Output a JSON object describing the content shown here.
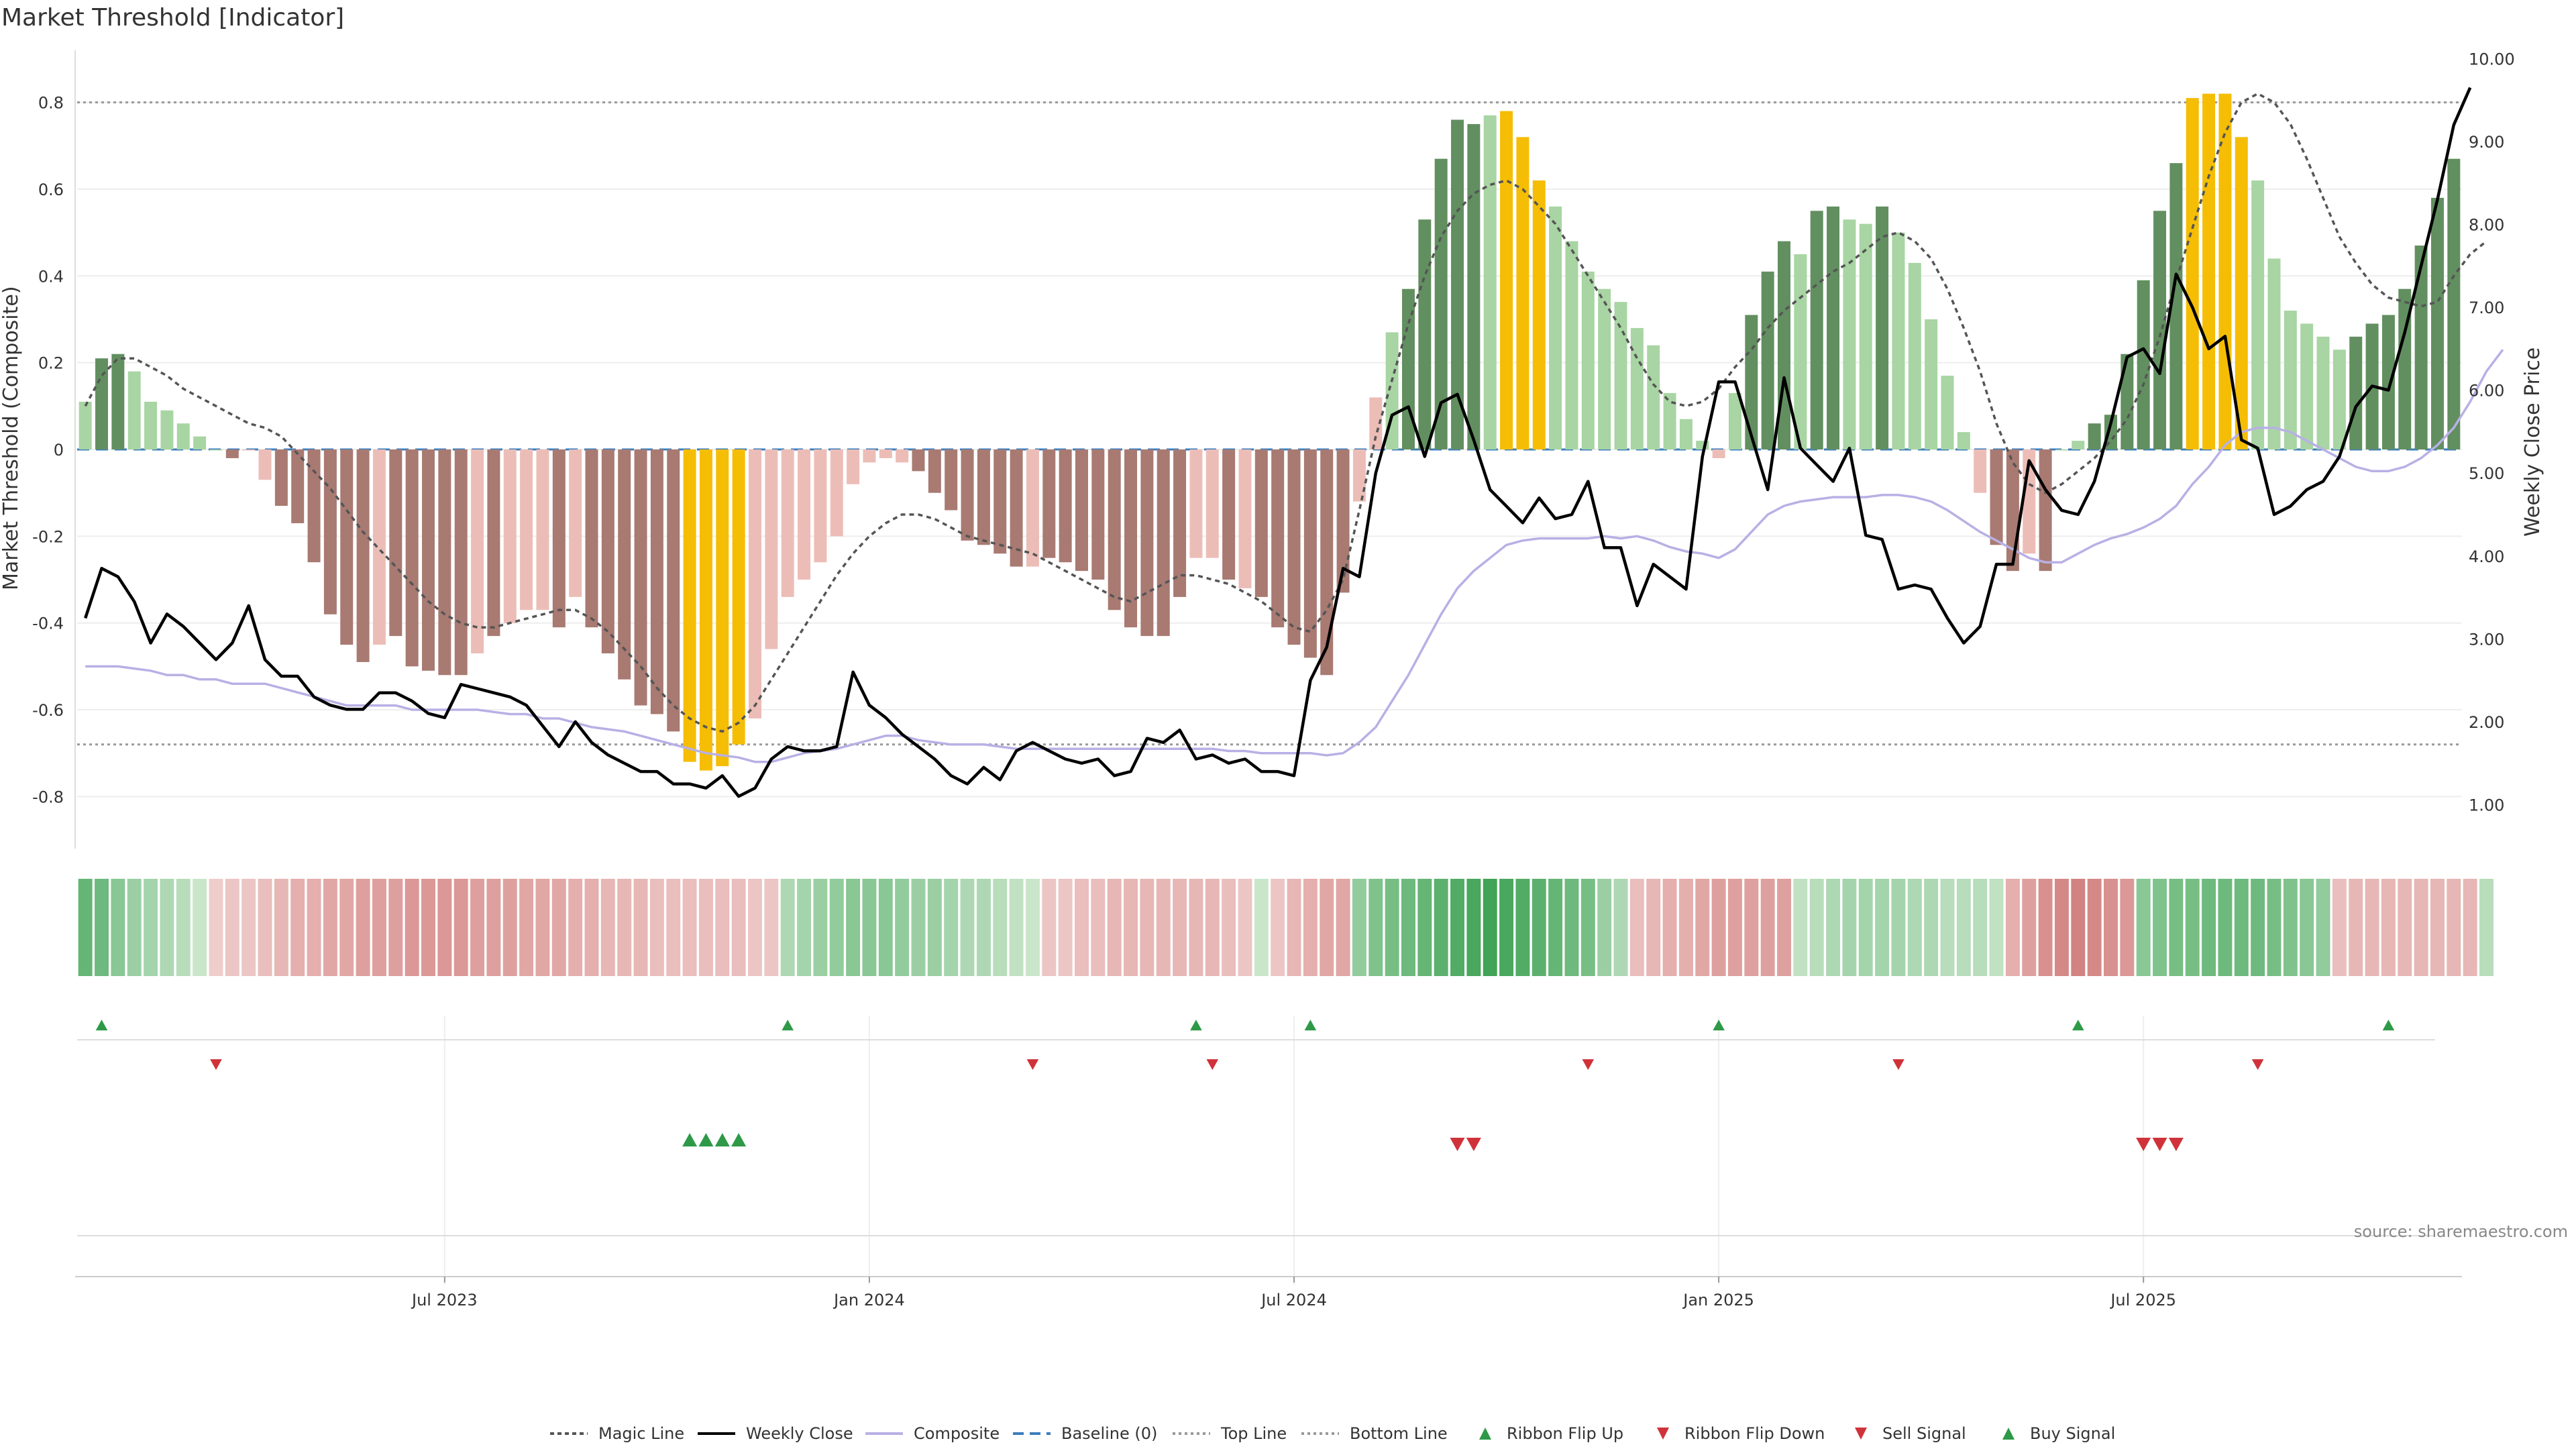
{
  "chart_data": {
    "type": "bar",
    "title": "Market Threshold [Indicator]",
    "ylabel": "Market Threshold (Composite)",
    "y2label": "Weekly Close Price",
    "ylim": [
      -0.92,
      0.92
    ],
    "y2lim": [
      0.47,
      10.1
    ],
    "yticks": [
      "0.8",
      "0.6",
      "0.4",
      "0.2",
      "0",
      "-0.2",
      "-0.4",
      "-0.6",
      "-0.8"
    ],
    "yticks_values": [
      0.8,
      0.6,
      0.4,
      0.2,
      0,
      -0.2,
      -0.4,
      -0.6,
      -0.8
    ],
    "y2ticks": [
      "10.00",
      "9.00",
      "8.00",
      "7.00",
      "6.00",
      "5.00",
      "4.00",
      "3.00",
      "2.00",
      "1.00"
    ],
    "y2ticks_values": [
      10,
      9,
      8,
      7,
      6,
      5,
      4,
      3,
      2,
      1
    ],
    "xticks": [
      "Jul 2023",
      "Jan 2024",
      "Jul 2024",
      "Jan 2025",
      "Jul 2025"
    ],
    "xticks_week_index": [
      22,
      48,
      74,
      100,
      126
    ],
    "top_line": 0.8,
    "bottom_line": -0.68,
    "grid": true,
    "legend_position": "bottom-center",
    "colors": {
      "pos_strong": "#628f60",
      "pos_light": "#a8d5a3",
      "neg_strong": "#a87a72",
      "neg_light": "#ecbdb7",
      "extreme": "#f5bd04",
      "magic": "#555555",
      "close": "#000000",
      "composite": "#b8b0e5",
      "baseline": "#3b7dbd",
      "up_marker": "#2e9a47",
      "down_marker": "#d0323a"
    },
    "composite_bars": [
      0.11,
      0.21,
      0.22,
      0.18,
      0.11,
      0.09,
      0.06,
      0.03,
      0.0,
      -0.02,
      0.0,
      -0.07,
      -0.13,
      -0.17,
      -0.26,
      -0.38,
      -0.45,
      -0.49,
      -0.45,
      -0.43,
      -0.5,
      -0.51,
      -0.52,
      -0.52,
      -0.47,
      -0.43,
      -0.4,
      -0.37,
      -0.37,
      -0.41,
      -0.34,
      -0.41,
      -0.47,
      -0.53,
      -0.59,
      -0.61,
      -0.65,
      -0.72,
      -0.74,
      -0.73,
      -0.68,
      -0.62,
      -0.46,
      -0.34,
      -0.3,
      -0.26,
      -0.2,
      -0.08,
      -0.03,
      -0.02,
      -0.03,
      -0.05,
      -0.1,
      -0.14,
      -0.21,
      -0.22,
      -0.24,
      -0.27,
      -0.27,
      -0.25,
      -0.26,
      -0.28,
      -0.3,
      -0.37,
      -0.41,
      -0.43,
      -0.43,
      -0.34,
      -0.25,
      -0.25,
      -0.3,
      -0.32,
      -0.34,
      -0.41,
      -0.45,
      -0.48,
      -0.52,
      -0.33,
      -0.12,
      0.12,
      0.27,
      0.37,
      0.53,
      0.67,
      0.76,
      0.75,
      0.77,
      0.78,
      0.72,
      0.62,
      0.56,
      0.48,
      0.41,
      0.37,
      0.34,
      0.28,
      0.24,
      0.13,
      0.07,
      0.02,
      -0.02,
      0.13,
      0.31,
      0.41,
      0.48,
      0.45,
      0.55,
      0.56,
      0.53,
      0.52,
      0.56,
      0.5,
      0.43,
      0.3,
      0.17,
      0.04,
      -0.1,
      -0.22,
      -0.28,
      -0.24,
      -0.28,
      0.0,
      0.02,
      0.06,
      0.08,
      0.22,
      0.39,
      0.55,
      0.66,
      0.81,
      0.82,
      0.82,
      0.72,
      0.62,
      0.44,
      0.32,
      0.29,
      0.26,
      0.23,
      0.26,
      0.29,
      0.31,
      0.37,
      0.47,
      0.58,
      0.67
    ],
    "bar_colors": [
      "pl",
      "ps",
      "ps",
      "pl",
      "pl",
      "pl",
      "pl",
      "pl",
      "pl",
      "ns",
      "nl",
      "nl",
      "ns",
      "ns",
      "ns",
      "ns",
      "ns",
      "ns",
      "nl",
      "ns",
      "ns",
      "ns",
      "ns",
      "ns",
      "nl",
      "ns",
      "nl",
      "nl",
      "nl",
      "ns",
      "nl",
      "ns",
      "ns",
      "ns",
      "ns",
      "ns",
      "ns",
      "ex",
      "ex",
      "ex",
      "ex",
      "nl",
      "nl",
      "nl",
      "nl",
      "nl",
      "nl",
      "nl",
      "nl",
      "nl",
      "nl",
      "ns",
      "ns",
      "ns",
      "ns",
      "ns",
      "ns",
      "ns",
      "nl",
      "ns",
      "ns",
      "ns",
      "ns",
      "ns",
      "ns",
      "ns",
      "ns",
      "ns",
      "nl",
      "nl",
      "ns",
      "nl",
      "ns",
      "ns",
      "ns",
      "ns",
      "ns",
      "ns",
      "nl",
      "nl",
      "pl",
      "ps",
      "ps",
      "ps",
      "ps",
      "ps",
      "pl",
      "ex",
      "ex",
      "ex",
      "pl",
      "pl",
      "pl",
      "pl",
      "pl",
      "pl",
      "pl",
      "pl",
      "pl",
      "pl",
      "nl",
      "pl",
      "ps",
      "ps",
      "ps",
      "pl",
      "ps",
      "ps",
      "pl",
      "pl",
      "ps",
      "pl",
      "pl",
      "pl",
      "pl",
      "pl",
      "nl",
      "ns",
      "ns",
      "nl",
      "ns",
      "pl",
      "pl",
      "ps",
      "ps",
      "ps",
      "ps",
      "ps",
      "ps",
      "ex",
      "ex",
      "ex",
      "ex",
      "pl",
      "pl",
      "pl",
      "pl",
      "pl",
      "pl",
      "ps",
      "ps",
      "ps",
      "ps",
      "ps",
      "ps",
      "ps"
    ],
    "magic_line": [
      0.1,
      0.17,
      0.21,
      0.21,
      0.19,
      0.17,
      0.14,
      0.12,
      0.1,
      0.08,
      0.06,
      0.05,
      0.03,
      -0.01,
      -0.05,
      -0.09,
      -0.14,
      -0.19,
      -0.23,
      -0.27,
      -0.31,
      -0.35,
      -0.38,
      -0.4,
      -0.41,
      -0.41,
      -0.4,
      -0.39,
      -0.38,
      -0.37,
      -0.37,
      -0.39,
      -0.42,
      -0.46,
      -0.5,
      -0.55,
      -0.59,
      -0.62,
      -0.64,
      -0.65,
      -0.63,
      -0.59,
      -0.53,
      -0.47,
      -0.41,
      -0.35,
      -0.29,
      -0.24,
      -0.2,
      -0.17,
      -0.15,
      -0.15,
      -0.16,
      -0.18,
      -0.2,
      -0.21,
      -0.22,
      -0.23,
      -0.24,
      -0.26,
      -0.28,
      -0.3,
      -0.32,
      -0.34,
      -0.35,
      -0.33,
      -0.31,
      -0.29,
      -0.29,
      -0.3,
      -0.31,
      -0.33,
      -0.35,
      -0.38,
      -0.41,
      -0.42,
      -0.37,
      -0.3,
      -0.14,
      0.03,
      0.16,
      0.29,
      0.4,
      0.49,
      0.55,
      0.59,
      0.61,
      0.62,
      0.6,
      0.56,
      0.52,
      0.46,
      0.4,
      0.34,
      0.28,
      0.21,
      0.15,
      0.11,
      0.1,
      0.11,
      0.14,
      0.19,
      0.23,
      0.28,
      0.32,
      0.35,
      0.38,
      0.41,
      0.43,
      0.46,
      0.49,
      0.5,
      0.48,
      0.44,
      0.37,
      0.28,
      0.18,
      0.06,
      -0.03,
      -0.08,
      -0.1,
      -0.08,
      -0.05,
      -0.02,
      0.02,
      0.07,
      0.15,
      0.26,
      0.39,
      0.51,
      0.63,
      0.73,
      0.8,
      0.82,
      0.8,
      0.75,
      0.67,
      0.58,
      0.49,
      0.43,
      0.38,
      0.35,
      0.34,
      0.33,
      0.34,
      0.4,
      0.45,
      0.48
    ],
    "composite_line": [
      -0.5,
      -0.5,
      -0.5,
      -0.505,
      -0.51,
      -0.52,
      -0.52,
      -0.53,
      -0.53,
      -0.54,
      -0.54,
      -0.54,
      -0.55,
      -0.56,
      -0.57,
      -0.58,
      -0.59,
      -0.59,
      -0.59,
      -0.59,
      -0.6,
      -0.6,
      -0.6,
      -0.6,
      -0.6,
      -0.605,
      -0.61,
      -0.61,
      -0.62,
      -0.62,
      -0.63,
      -0.64,
      -0.645,
      -0.65,
      -0.66,
      -0.67,
      -0.68,
      -0.69,
      -0.7,
      -0.705,
      -0.71,
      -0.72,
      -0.72,
      -0.71,
      -0.7,
      -0.695,
      -0.69,
      -0.68,
      -0.67,
      -0.66,
      -0.66,
      -0.67,
      -0.675,
      -0.68,
      -0.68,
      -0.68,
      -0.685,
      -0.69,
      -0.69,
      -0.69,
      -0.69,
      -0.69,
      -0.69,
      -0.69,
      -0.69,
      -0.69,
      -0.69,
      -0.69,
      -0.69,
      -0.69,
      -0.695,
      -0.695,
      -0.7,
      -0.7,
      -0.7,
      -0.7,
      -0.705,
      -0.7,
      -0.675,
      -0.64,
      -0.58,
      -0.52,
      -0.45,
      -0.38,
      -0.32,
      -0.28,
      -0.25,
      -0.22,
      -0.21,
      -0.205,
      -0.205,
      -0.205,
      -0.205,
      -0.2,
      -0.205,
      -0.2,
      -0.21,
      -0.225,
      -0.235,
      -0.24,
      -0.25,
      -0.23,
      -0.19,
      -0.15,
      -0.13,
      -0.12,
      -0.115,
      -0.11,
      -0.11,
      -0.11,
      -0.105,
      -0.105,
      -0.11,
      -0.12,
      -0.14,
      -0.165,
      -0.19,
      -0.21,
      -0.23,
      -0.25,
      -0.26,
      -0.26,
      -0.24,
      -0.22,
      -0.205,
      -0.195,
      -0.18,
      -0.16,
      -0.13,
      -0.08,
      -0.04,
      0.01,
      0.04,
      0.05,
      0.05,
      0.04,
      0.02,
      0.0,
      -0.02,
      -0.04,
      -0.05,
      -0.05,
      -0.04,
      -0.02,
      0.01,
      0.05,
      0.11,
      0.18,
      0.23
    ],
    "weekly_close": [
      3.25,
      3.85,
      3.75,
      3.45,
      2.95,
      3.3,
      3.15,
      2.95,
      2.75,
      2.95,
      3.4,
      2.75,
      2.55,
      2.55,
      2.3,
      2.2,
      2.15,
      2.15,
      2.35,
      2.35,
      2.25,
      2.1,
      2.05,
      2.45,
      2.4,
      2.35,
      2.3,
      2.2,
      1.95,
      1.7,
      2.0,
      1.75,
      1.6,
      1.5,
      1.4,
      1.4,
      1.25,
      1.25,
      1.2,
      1.35,
      1.1,
      1.2,
      1.55,
      1.7,
      1.65,
      1.65,
      1.7,
      2.6,
      2.2,
      2.05,
      1.85,
      1.7,
      1.55,
      1.35,
      1.25,
      1.45,
      1.3,
      1.65,
      1.75,
      1.65,
      1.55,
      1.5,
      1.55,
      1.35,
      1.4,
      1.8,
      1.75,
      1.9,
      1.55,
      1.6,
      1.5,
      1.55,
      1.4,
      1.4,
      1.35,
      2.5,
      2.9,
      3.85,
      3.75,
      5.0,
      5.7,
      5.8,
      5.2,
      5.85,
      5.95,
      5.4,
      4.8,
      4.6,
      4.4,
      4.7,
      4.45,
      4.5,
      4.9,
      4.1,
      4.1,
      3.4,
      3.9,
      3.75,
      3.6,
      5.2,
      6.1,
      6.1,
      5.45,
      4.8,
      6.15,
      5.3,
      5.1,
      4.9,
      5.3,
      4.25,
      4.2,
      3.6,
      3.65,
      3.6,
      3.25,
      2.95,
      3.15,
      3.9,
      3.9,
      5.15,
      4.8,
      4.55,
      4.5,
      4.9,
      5.6,
      6.4,
      6.5,
      6.2,
      7.4,
      7.0,
      6.5,
      6.65,
      5.4,
      5.3,
      4.5,
      4.6,
      4.8,
      4.9,
      5.2,
      5.8,
      6.05,
      6.0,
      6.7,
      7.5,
      8.3,
      9.2,
      9.65
    ],
    "ribbon_values": [
      0.7,
      0.65,
      0.5,
      0.4,
      0.35,
      0.3,
      0.25,
      0.15,
      -0.15,
      -0.2,
      -0.2,
      -0.25,
      -0.3,
      -0.35,
      -0.35,
      -0.4,
      -0.4,
      -0.45,
      -0.45,
      -0.45,
      -0.5,
      -0.5,
      -0.5,
      -0.5,
      -0.45,
      -0.45,
      -0.45,
      -0.4,
      -0.4,
      -0.4,
      -0.35,
      -0.35,
      -0.3,
      -0.3,
      -0.3,
      -0.25,
      -0.25,
      -0.25,
      -0.25,
      -0.25,
      -0.25,
      -0.2,
      -0.2,
      0.3,
      0.35,
      0.4,
      0.45,
      0.5,
      0.5,
      0.5,
      0.45,
      0.4,
      0.4,
      0.35,
      0.3,
      0.3,
      0.25,
      0.2,
      0.15,
      -0.2,
      -0.2,
      -0.25,
      -0.25,
      -0.3,
      -0.3,
      -0.3,
      -0.3,
      -0.3,
      -0.3,
      -0.3,
      -0.25,
      -0.2,
      0.15,
      -0.2,
      -0.3,
      -0.35,
      -0.4,
      -0.4,
      0.45,
      0.55,
      0.6,
      0.65,
      0.7,
      0.75,
      0.8,
      0.85,
      0.9,
      0.85,
      0.8,
      0.75,
      0.7,
      0.65,
      0.6,
      0.4,
      0.3,
      -0.25,
      -0.3,
      -0.35,
      -0.35,
      -0.4,
      -0.45,
      -0.45,
      -0.45,
      -0.45,
      -0.45,
      0.2,
      0.25,
      0.3,
      0.35,
      0.35,
      0.35,
      0.35,
      0.3,
      0.3,
      0.25,
      0.25,
      0.25,
      0.2,
      -0.35,
      -0.45,
      -0.55,
      -0.6,
      -0.65,
      -0.6,
      -0.55,
      -0.5,
      0.5,
      0.55,
      0.6,
      0.6,
      0.65,
      0.65,
      0.65,
      0.65,
      0.6,
      0.55,
      0.5,
      0.45,
      -0.25,
      -0.3,
      -0.3,
      -0.3,
      -0.3,
      -0.3,
      -0.3,
      -0.3,
      -0.3,
      0.25
    ],
    "ribbon_flip_up": [
      1,
      43,
      68,
      75,
      100,
      122,
      141
    ],
    "ribbon_flip_down": [
      8,
      58,
      69,
      92,
      111,
      133
    ],
    "buy_signals": [
      37,
      38,
      39,
      40
    ],
    "sell_signals": [
      84,
      85,
      126,
      127,
      128
    ],
    "legend": [
      "Magic Line",
      "Weekly Close",
      "Composite",
      "Baseline (0)",
      "Top Line",
      "Bottom Line",
      "Ribbon Flip Up",
      "Ribbon Flip Down",
      "Sell Signal",
      "Buy Signal"
    ],
    "source": "source: sharemaestro.com"
  }
}
